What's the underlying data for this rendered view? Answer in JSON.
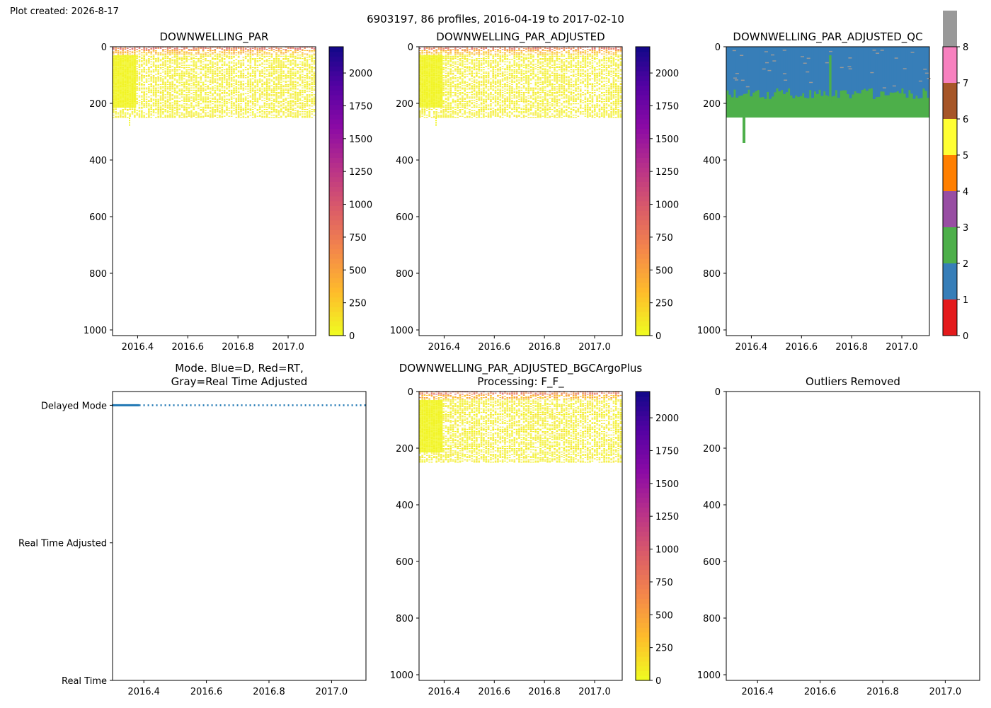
{
  "page": {
    "created_label": "Plot created: 2026-8-17",
    "suptitle": "6903197, 86 profiles, 2016-04-19 to 2017-02-10"
  },
  "chart_data": [
    {
      "id": "par",
      "type": "heatmap",
      "title": "DOWNWELLING_PAR",
      "xlim": [
        2016.3,
        2017.11
      ],
      "ylim": [
        1020,
        0
      ],
      "xticks": [
        2016.4,
        2016.6,
        2016.8,
        2017.0
      ],
      "xtick_labels": [
        "2016.4",
        "2016.6",
        "2016.8",
        "2017.0"
      ],
      "yticks": [
        0,
        200,
        400,
        600,
        800,
        1000
      ],
      "ytick_labels": [
        "0",
        "200",
        "400",
        "600",
        "800",
        "1000"
      ],
      "data_depth_range": [
        0,
        250
      ],
      "deep_profiles": [
        {
          "x": 2016.365,
          "depth": 280
        }
      ],
      "colorbar": {
        "colormap": "plasma_r",
        "range": [
          0,
          2200
        ],
        "ticks": [
          0,
          250,
          500,
          750,
          1000,
          1250,
          1500,
          1750,
          2000
        ],
        "tick_labels": [
          "0",
          "250",
          "500",
          "750",
          "1000",
          "1250",
          "1500",
          "1750",
          "2000"
        ]
      }
    },
    {
      "id": "par_adj",
      "type": "heatmap",
      "title": "DOWNWELLING_PAR_ADJUSTED",
      "xlim": [
        2016.3,
        2017.11
      ],
      "ylim": [
        1020,
        0
      ],
      "xticks": [
        2016.4,
        2016.6,
        2016.8,
        2017.0
      ],
      "xtick_labels": [
        "2016.4",
        "2016.6",
        "2016.8",
        "2017.0"
      ],
      "yticks": [
        0,
        200,
        400,
        600,
        800,
        1000
      ],
      "ytick_labels": [
        "0",
        "200",
        "400",
        "600",
        "800",
        "1000"
      ],
      "data_depth_range": [
        0,
        250
      ],
      "deep_profiles": [
        {
          "x": 2016.365,
          "depth": 280
        }
      ],
      "colorbar": {
        "colormap": "plasma_r",
        "range": [
          0,
          2200
        ],
        "ticks": [
          0,
          250,
          500,
          750,
          1000,
          1250,
          1500,
          1750,
          2000
        ],
        "tick_labels": [
          "0",
          "250",
          "500",
          "750",
          "1000",
          "1250",
          "1500",
          "1750",
          "2000"
        ]
      }
    },
    {
      "id": "par_qc",
      "type": "heatmap",
      "title": "DOWNWELLING_PAR_ADJUSTED_QC",
      "xlim": [
        2016.3,
        2017.11
      ],
      "ylim": [
        1020,
        0
      ],
      "xticks": [
        2016.4,
        2016.6,
        2016.8,
        2017.0
      ],
      "xtick_labels": [
        "2016.4",
        "2016.6",
        "2016.8",
        "2017.0"
      ],
      "yticks": [
        0,
        200,
        400,
        600,
        800,
        1000
      ],
      "ytick_labels": [
        "0",
        "200",
        "400",
        "600",
        "800",
        "1000"
      ],
      "qc1_blue_to_depth_approx": [
        150,
        200
      ],
      "qc2_green_to_depth": 250,
      "deep_profiles": [
        {
          "x": 2016.365,
          "depth": 340
        }
      ],
      "spike_profiles": [
        {
          "x": 2016.71,
          "depth": 30
        }
      ],
      "colorbar": {
        "colormap": "qc_categorical",
        "range": [
          0,
          8
        ],
        "ticks": [
          0,
          1,
          2,
          3,
          4,
          5,
          6,
          7,
          8
        ],
        "tick_labels": [
          "0",
          "1",
          "2",
          "3",
          "4",
          "5",
          "6",
          "7",
          "8"
        ],
        "colors": [
          "#e41a1c",
          "#377eb8",
          "#4daf4a",
          "#984ea3",
          "#ff7f00",
          "#ffff33",
          "#a65628",
          "#f781bf",
          "#999999"
        ]
      }
    },
    {
      "id": "mode",
      "type": "line",
      "title_line1": "Mode. Blue=D, Red=RT,",
      "title_line2": "Gray=Real Time Adjusted",
      "xlim": [
        2016.3,
        2017.11
      ],
      "xticks": [
        2016.4,
        2016.6,
        2016.8,
        2017.0
      ],
      "xtick_labels": [
        "2016.4",
        "2016.6",
        "2016.8",
        "2017.0"
      ],
      "yticks": [
        0,
        1,
        2
      ],
      "ytick_labels": [
        "Real Time",
        "Real Time Adjusted",
        "Delayed Mode"
      ],
      "ylim": [
        0,
        2.1
      ],
      "series": [
        {
          "mode_level": 2,
          "x_start": 2016.298,
          "x_end": 2017.11,
          "solid_until": 2016.385,
          "color": "#1f77b4"
        }
      ]
    },
    {
      "id": "bgc",
      "type": "heatmap",
      "title_line1": "DOWNWELLING_PAR_ADJUSTED_BGCArgoPlus",
      "title_line2": "Processing: F_F_",
      "xlim": [
        2016.3,
        2017.11
      ],
      "ylim": [
        1020,
        0
      ],
      "xticks": [
        2016.4,
        2016.6,
        2016.8,
        2017.0
      ],
      "xtick_labels": [
        "2016.4",
        "2016.6",
        "2016.8",
        "2017.0"
      ],
      "yticks": [
        0,
        200,
        400,
        600,
        800,
        1000
      ],
      "ytick_labels": [
        "0",
        "200",
        "400",
        "600",
        "800",
        "1000"
      ],
      "data_depth_range": [
        0,
        250
      ],
      "deep_profiles": [],
      "colorbar": {
        "colormap": "plasma_r",
        "range": [
          0,
          2200
        ],
        "ticks": [
          0,
          250,
          500,
          750,
          1000,
          1250,
          1500,
          1750,
          2000
        ],
        "tick_labels": [
          "0",
          "250",
          "500",
          "750",
          "1000",
          "1250",
          "1500",
          "1750",
          "2000"
        ]
      }
    },
    {
      "id": "outliers",
      "type": "scatter",
      "title": "Outliers Removed",
      "xlim": [
        2016.3,
        2017.11
      ],
      "ylim": [
        1020,
        0
      ],
      "xticks": [
        2016.4,
        2016.6,
        2016.8,
        2017.0
      ],
      "xtick_labels": [
        "2016.4",
        "2016.6",
        "2016.8",
        "2017.0"
      ],
      "yticks": [
        0,
        200,
        400,
        600,
        800,
        1000
      ],
      "ytick_labels": [
        "0",
        "200",
        "400",
        "600",
        "800",
        "1000"
      ],
      "points": []
    }
  ]
}
